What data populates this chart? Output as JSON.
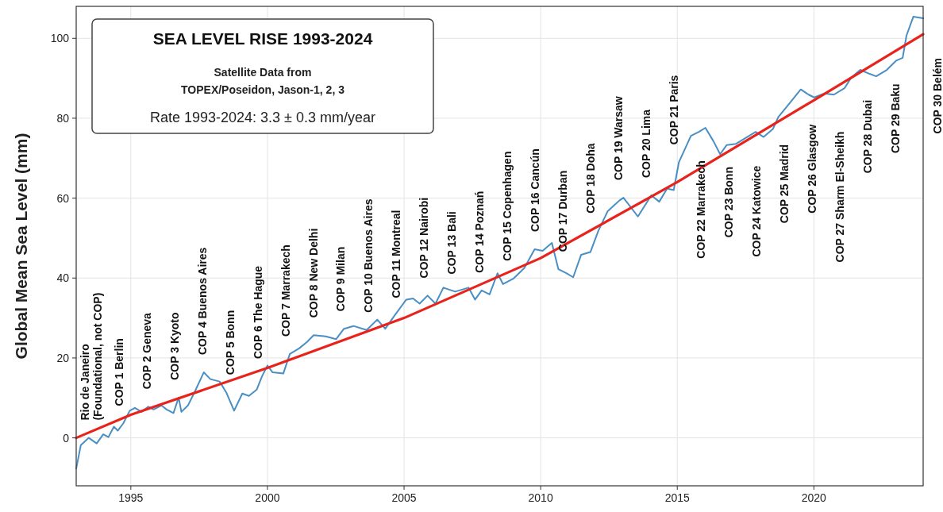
{
  "chart_data": {
    "type": "line",
    "title": "SEA LEVEL RISE 1993-2024",
    "subtitle": "Satellite Data from\nTOPEX/Poseidon, Jason-1, 2, 3",
    "ylabel": "Global Mean Sea Level (mm)",
    "xlim": [
      1993,
      2024
    ],
    "ylim": [
      -12,
      108
    ],
    "xticks": [
      1995,
      2000,
      2005,
      2010,
      2015,
      2020
    ],
    "yticks": [
      0,
      20,
      40,
      60,
      80,
      100
    ],
    "grid": true,
    "marker": "none",
    "line_style": "solid",
    "series": [
      {
        "color": "#4a8fc4",
        "x": [
          1993.0,
          1993.17,
          1993.46,
          1993.75,
          1993.99,
          1994.18,
          1994.38,
          1994.52,
          1994.72,
          1994.96,
          1995.15,
          1995.39,
          1995.64,
          1995.83,
          1996.12,
          1996.31,
          1996.56,
          1996.75,
          1996.85,
          1997.09,
          1997.33,
          1997.67,
          1997.91,
          1998.25,
          1998.49,
          1998.78,
          1999.08,
          1999.32,
          1999.61,
          1999.8,
          2000.0,
          2000.19,
          2000.58,
          2000.82,
          2001.16,
          2001.45,
          2001.69,
          2002.13,
          2002.51,
          2002.8,
          2003.15,
          2003.63,
          2004.02,
          2004.31,
          2004.65,
          2005.08,
          2005.33,
          2005.57,
          2005.86,
          2006.15,
          2006.44,
          2006.87,
          2007.36,
          2007.6,
          2007.84,
          2008.13,
          2008.42,
          2008.62,
          2009.01,
          2009.4,
          2009.78,
          2010.07,
          2010.41,
          2010.65,
          2010.94,
          2011.19,
          2011.48,
          2011.82,
          2012.11,
          2012.45,
          2012.88,
          2013.03,
          2013.56,
          2014.05,
          2014.34,
          2014.63,
          2014.87,
          2015.06,
          2015.5,
          2015.79,
          2016.03,
          2016.32,
          2016.57,
          2016.81,
          2017.15,
          2017.63,
          2017.87,
          2018.16,
          2018.5,
          2018.7,
          2019.08,
          2019.52,
          2019.81,
          2020.01,
          2020.39,
          2020.73,
          2021.12,
          2021.36,
          2021.7,
          2022.04,
          2022.28,
          2022.67,
          2023.01,
          2023.25,
          2023.39,
          2023.64,
          2024.0
        ],
        "values": [
          -7.7,
          -1.8,
          0,
          -1.4,
          0.9,
          0.2,
          2.8,
          1.8,
          3.6,
          6.8,
          7.5,
          6.5,
          7.8,
          7.1,
          8.1,
          7.1,
          6.2,
          10.1,
          6.5,
          8.1,
          11.4,
          16.4,
          14.7,
          14.1,
          11.4,
          6.8,
          11.1,
          10.5,
          12.1,
          15.4,
          18.1,
          16.4,
          16.1,
          21.0,
          22.4,
          24.0,
          25.7,
          25.4,
          24.7,
          27.3,
          28.0,
          27.0,
          29.6,
          27.3,
          30.6,
          34.6,
          34.9,
          33.6,
          35.6,
          33.6,
          37.6,
          36.6,
          37.6,
          34.6,
          36.9,
          35.9,
          41.2,
          38.5,
          39.9,
          42.5,
          47.2,
          46.8,
          48.8,
          42.2,
          41.2,
          40.2,
          45.8,
          46.5,
          51.8,
          56.7,
          59.4,
          60.1,
          55.4,
          60.7,
          59.1,
          62.4,
          62.0,
          69.0,
          75.6,
          76.6,
          77.6,
          74.3,
          71.0,
          73.3,
          73.6,
          75.6,
          76.6,
          75.3,
          77.3,
          80.3,
          83.5,
          87.2,
          85.9,
          85.2,
          86.2,
          85.9,
          87.5,
          90.1,
          92.1,
          91.1,
          90.5,
          92.1,
          94.4,
          95.1,
          100.7,
          105.4,
          105.0
        ]
      },
      {
        "color": "#e8231c",
        "x": [
          1993,
          1995,
          2000,
          2005,
          2010,
          2015,
          2020,
          2024
        ],
        "values": [
          0,
          5.8,
          17.5,
          30,
          45,
          64,
          84.5,
          101
        ]
      }
    ],
    "annotations": [
      "Rate 1993-2024: 3.3 ± 0.3 mm/year",
      "Rio de Janeiro\n(Foundational, not COP)",
      "COP 1 Berlin",
      "COP 2 Geneva",
      "COP 3 Kyoto",
      "COP 4 Buenos Aires",
      "COP 5 Bonn",
      "COP 6 The Hague",
      "COP 7 Marrakech",
      "COP 8 New Delhi",
      "COP 9 Milan",
      "COP 10 Buenos Aires",
      "COP 11 Montreal",
      "COP 12 Nairobi",
      "COP 13 Bali",
      "COP 14 Poznań",
      "COP 15 Copenhagen",
      "COP 16 Cancún",
      "COP 17 Durban",
      "COP 18 Doha",
      "COP 19 Warsaw",
      "COP 20 Lima",
      "COP 21 Paris",
      "COP 22 Marrakech",
      "COP 23 Bonn",
      "COP 24 Katowice",
      "COP 25 Madrid",
      "COP 26 Glasgow",
      "COP 27 Sharm El-Sheikh",
      "COP 28 Dubai",
      "COP 29 Baku",
      "COP 30 Belém"
    ]
  }
}
